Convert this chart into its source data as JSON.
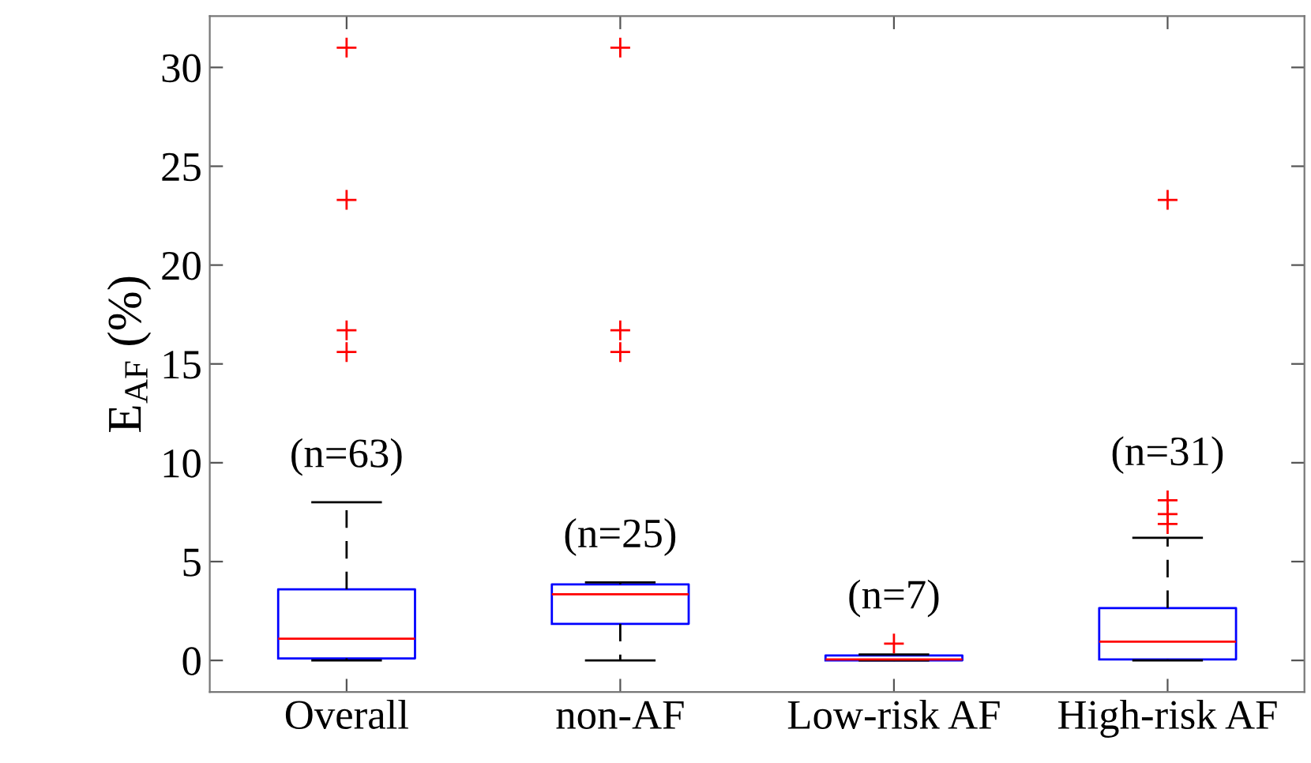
{
  "chart_data": {
    "type": "box",
    "ylabel": "E$_{AF}$ (%)",
    "categories": [
      "Overall",
      "non-AF",
      "Low-risk AF",
      "High-risk AF"
    ],
    "series": [
      {
        "color": "#0000ff",
        "boxes": [
          {
            "low": 0,
            "q1": 0.1,
            "median": 1.1,
            "q3": 3.6,
            "high": 8.0,
            "outliers": [
              31.0,
              23.3,
              16.7,
              15.6
            ]
          },
          {
            "low": 0,
            "q1": 1.85,
            "median": 3.35,
            "q3": 3.85,
            "high": 3.95,
            "outliers": [
              31.0,
              16.7,
              15.6
            ]
          },
          {
            "low": 0,
            "q1": 0,
            "median": 0.05,
            "q3": 0.25,
            "high": 0.3,
            "outliers": [
              0.85
            ]
          },
          {
            "low": 0,
            "q1": 0.05,
            "median": 0.95,
            "q3": 2.65,
            "high": 6.2,
            "outliers": [
              23.3,
              8.1,
              7.4,
              6.9
            ]
          }
        ]
      }
    ],
    "ylim": [
      -1.6,
      32.6
    ],
    "yticks": [
      0,
      5,
      10,
      15,
      20,
      25,
      30
    ],
    "marker": "cross",
    "grid": false,
    "annotations": [
      "(n=63)",
      "(n=25)",
      "(n=7)",
      "(n=31)"
    ]
  }
}
